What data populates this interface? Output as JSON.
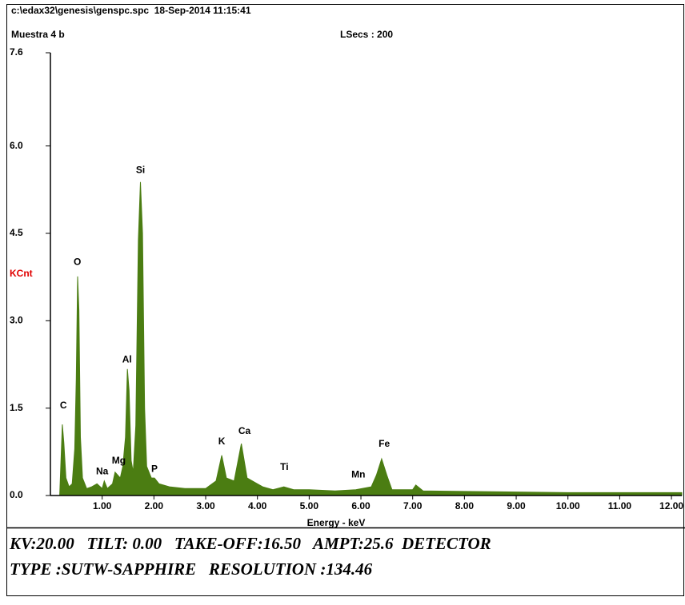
{
  "chart_data": {
    "type": "area",
    "title": "c:\\edax32\\genesis\\genspc.spc  18-Sep-2014 11:15:41",
    "subtitle": "Muestra 4 b",
    "live_time": "LSecs : 200",
    "ylabel": "KCnt",
    "xlabel": "Energy - keV",
    "color": "#4b7d12",
    "x": [
      0.18,
      0.23,
      0.26,
      0.3,
      0.36,
      0.42,
      0.47,
      0.5,
      0.525,
      0.55,
      0.58,
      0.62,
      0.7,
      0.8,
      0.9,
      1.0,
      1.04,
      1.1,
      1.2,
      1.25,
      1.3,
      1.35,
      1.4,
      1.45,
      1.487,
      1.52,
      1.56,
      1.6,
      1.65,
      1.7,
      1.74,
      1.78,
      1.82,
      1.86,
      1.95,
      2.01,
      2.1,
      2.3,
      2.6,
      3.0,
      3.2,
      3.31,
      3.4,
      3.55,
      3.69,
      3.8,
      4.0,
      4.1,
      4.3,
      4.51,
      4.7,
      5.0,
      5.5,
      5.9,
      6.2,
      6.3,
      6.4,
      6.5,
      6.6,
      7.0,
      7.06,
      7.2,
      8.0,
      9.0,
      10.0,
      11.0,
      12.2
    ],
    "values": [
      0,
      1.22,
      0.9,
      0.3,
      0.15,
      0.2,
      0.8,
      2.0,
      3.76,
      3.18,
      1.0,
      0.3,
      0.12,
      0.15,
      0.2,
      0.12,
      0.25,
      0.12,
      0.2,
      0.4,
      0.35,
      0.3,
      0.5,
      1.0,
      2.17,
      1.8,
      0.6,
      0.4,
      1.2,
      4.39,
      5.38,
      4.5,
      1.5,
      0.5,
      0.3,
      0.3,
      0.2,
      0.15,
      0.12,
      0.12,
      0.25,
      0.69,
      0.3,
      0.25,
      0.89,
      0.3,
      0.2,
      0.15,
      0.1,
      0.15,
      0.1,
      0.1,
      0.08,
      0.1,
      0.15,
      0.35,
      0.63,
      0.35,
      0.1,
      0.1,
      0.18,
      0.08,
      0.07,
      0.06,
      0.05,
      0.05,
      0.05
    ],
    "xlim": [
      0,
      12.2
    ],
    "ylim": [
      0,
      7.6
    ],
    "xticks": [
      {
        "value": 1,
        "label": "1.00"
      },
      {
        "value": 2,
        "label": "2.00"
      },
      {
        "value": 3,
        "label": "3.00"
      },
      {
        "value": 4,
        "label": "4.00"
      },
      {
        "value": 5,
        "label": "5.00"
      },
      {
        "value": 6,
        "label": "6.00"
      },
      {
        "value": 7,
        "label": "7.00"
      },
      {
        "value": 8,
        "label": "8.00"
      },
      {
        "value": 9,
        "label": "9.00"
      },
      {
        "value": 10,
        "label": "10.00"
      },
      {
        "value": 11,
        "label": "11.00"
      },
      {
        "value": 12,
        "label": "12.00"
      }
    ],
    "yticks": [
      {
        "value": 0,
        "label": "0.0"
      },
      {
        "value": 1.5,
        "label": "1.5"
      },
      {
        "value": 3,
        "label": "3.0"
      },
      {
        "value": 4.5,
        "label": "4.5"
      },
      {
        "value": 6,
        "label": "6.0"
      },
      {
        "value": 7.6,
        "label": "7.6"
      }
    ],
    "annotations": [
      {
        "text": "C",
        "x": 0.25,
        "y": 1.54
      },
      {
        "text": "O",
        "x": 0.52,
        "y": 4.0
      },
      {
        "text": "Na",
        "x": 1.0,
        "y": 0.41
      },
      {
        "text": "Mg",
        "x": 1.32,
        "y": 0.59
      },
      {
        "text": "Al",
        "x": 1.48,
        "y": 2.33
      },
      {
        "text": "Si",
        "x": 1.74,
        "y": 5.58
      },
      {
        "text": "P",
        "x": 2.01,
        "y": 0.45
      },
      {
        "text": "K",
        "x": 3.31,
        "y": 0.92
      },
      {
        "text": "Ca",
        "x": 3.75,
        "y": 1.1
      },
      {
        "text": "Ti",
        "x": 4.52,
        "y": 0.48
      },
      {
        "text": "Mn",
        "x": 5.95,
        "y": 0.35
      },
      {
        "text": "Fe",
        "x": 6.45,
        "y": 0.88
      }
    ],
    "notes": [
      "KV:20.00   TILT: 0.00   TAKE-OFF:16.50   AMPT:25.6  DETECTOR",
      "TYPE :SUTW-SAPPHIRE   RESOLUTION :134.46"
    ]
  }
}
